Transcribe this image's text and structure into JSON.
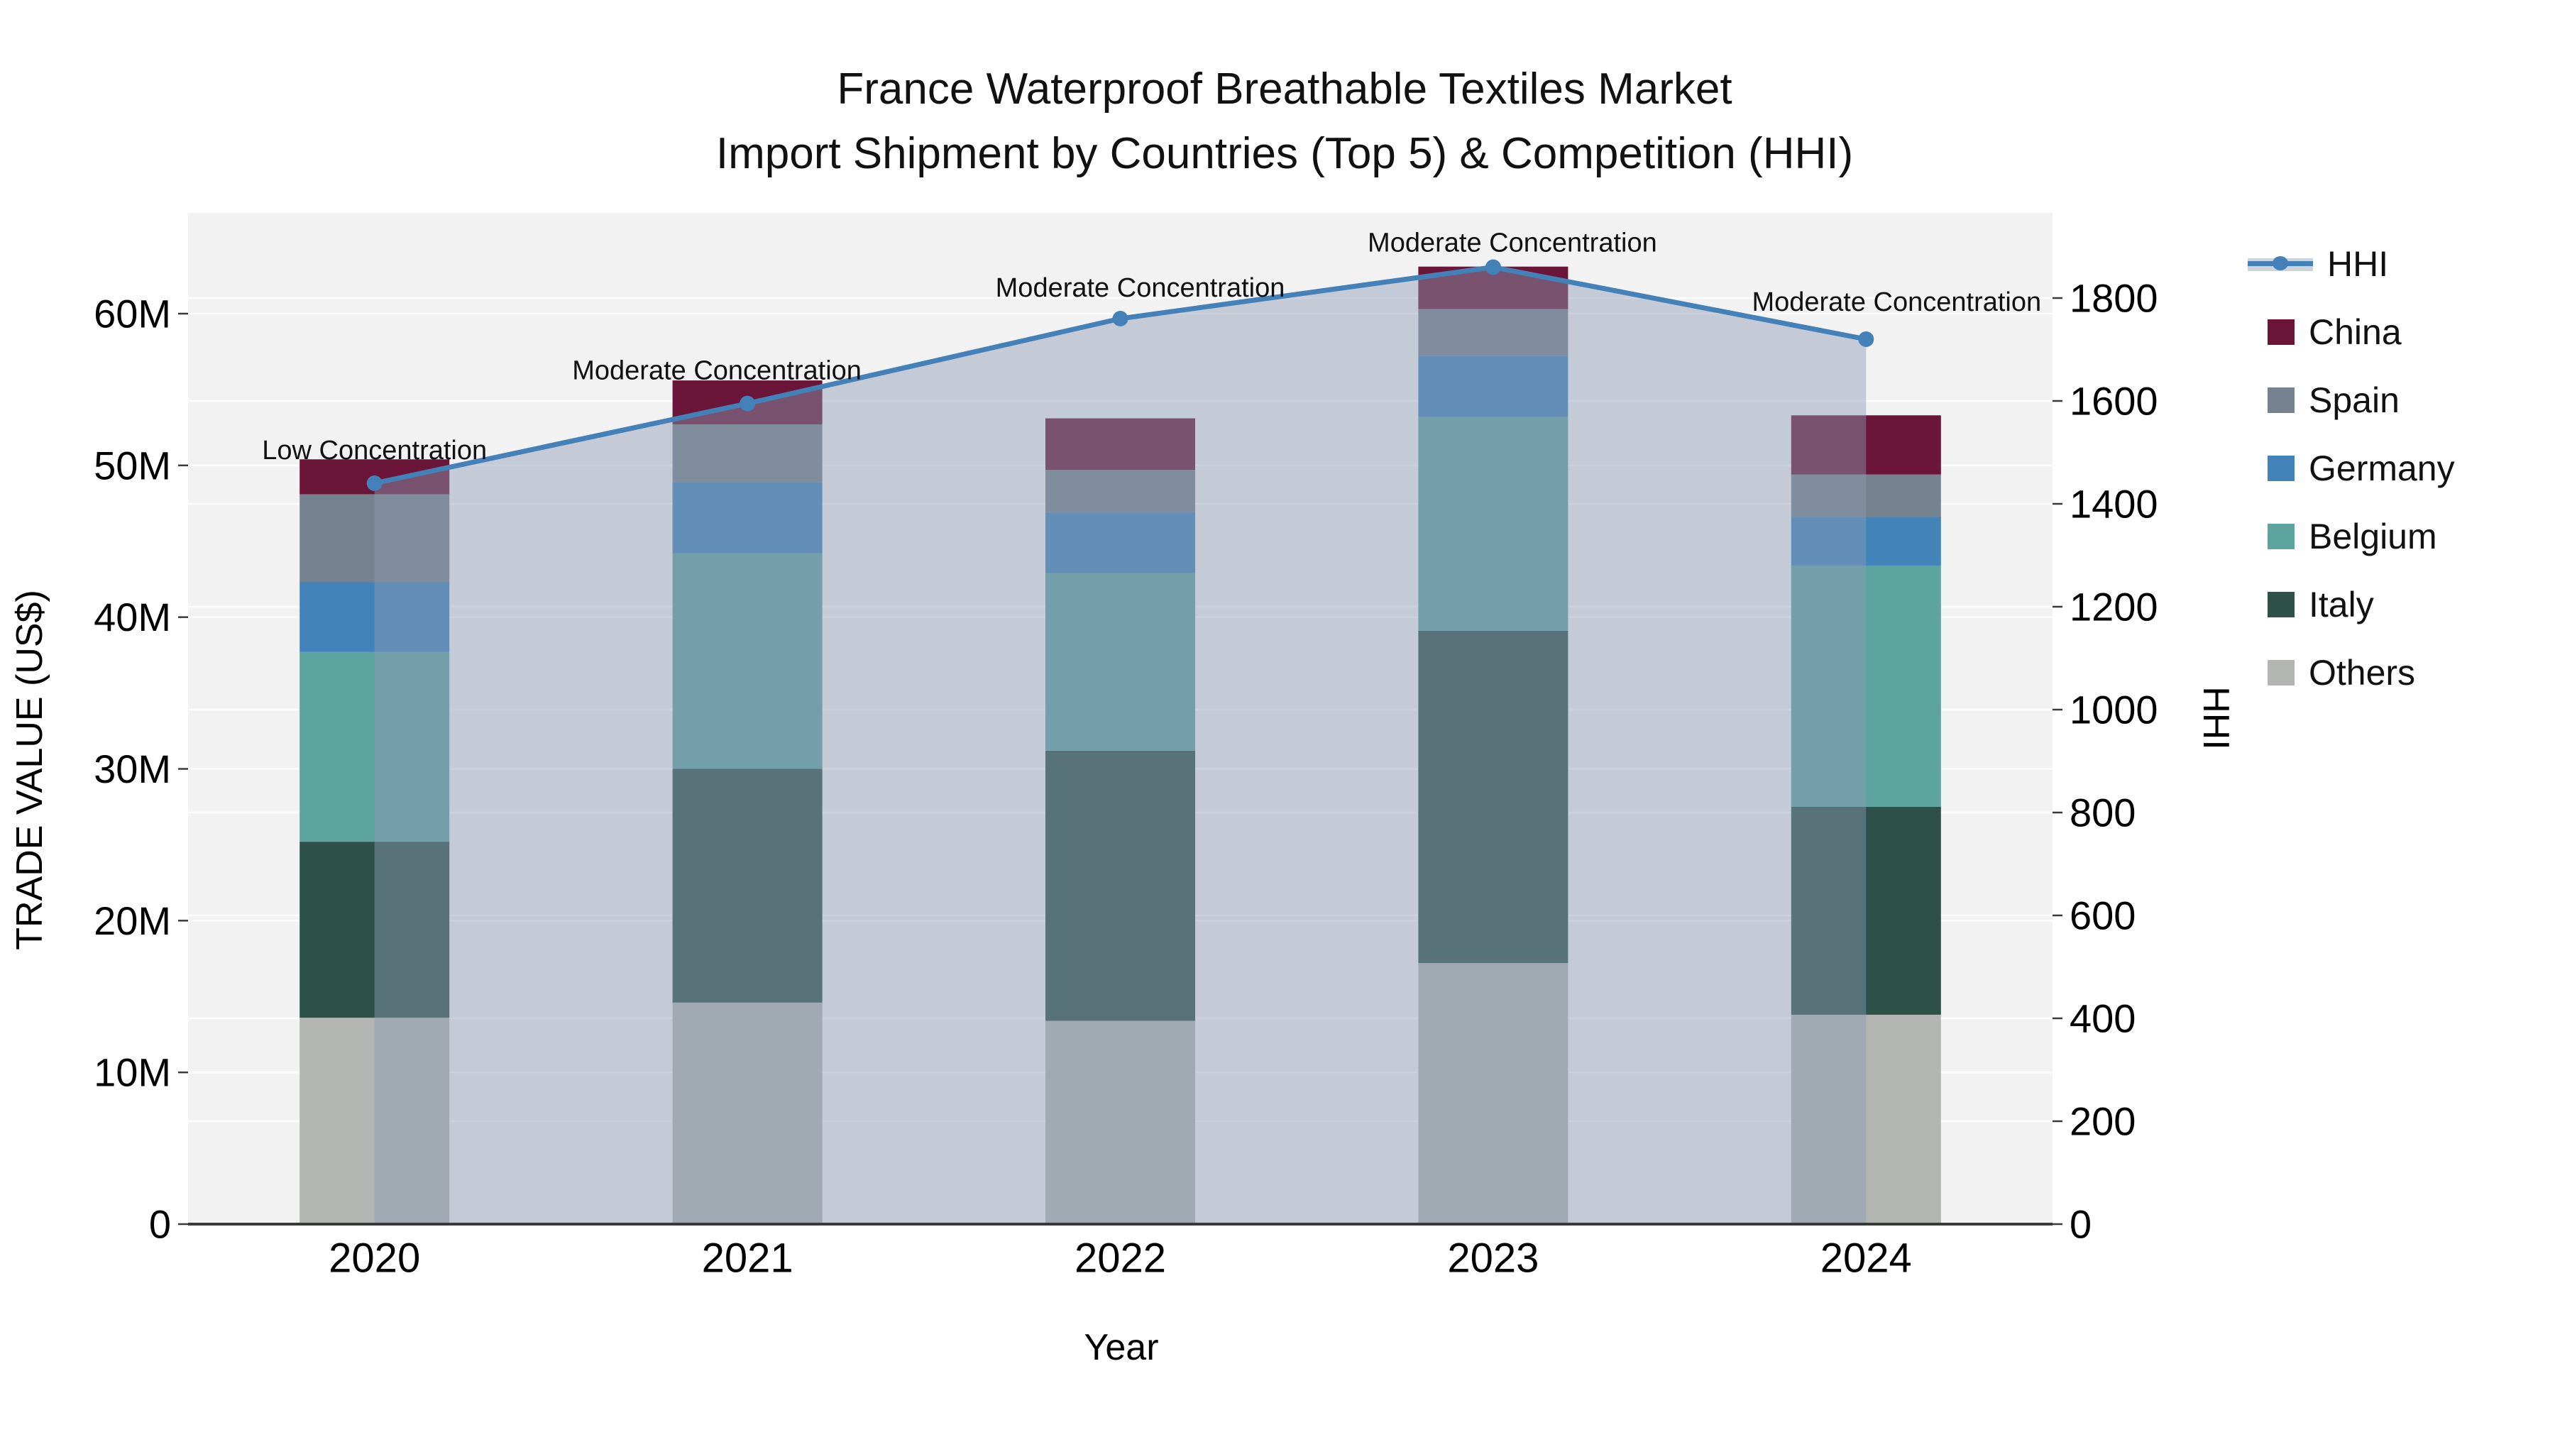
{
  "title": {
    "line1": "France Waterproof Breathable Textiles Market",
    "line2": "Import Shipment by Countries (Top 5) & Competition (HHI)"
  },
  "axes": {
    "left_title": "TRADE VALUE (US$)",
    "right_title": "HHI",
    "x_title": "Year",
    "left_ticks": [
      "0",
      "10M",
      "20M",
      "30M",
      "40M",
      "50M",
      "60M"
    ],
    "right_ticks": [
      "0",
      "200",
      "400",
      "600",
      "800",
      "1000",
      "1200",
      "1400",
      "1600",
      "1800"
    ],
    "x_ticks": [
      "2020",
      "2021",
      "2022",
      "2023",
      "2024"
    ]
  },
  "legend": {
    "items": [
      {
        "label": "HHI",
        "type": "line",
        "color": "#4381b8"
      },
      {
        "label": "China",
        "type": "patch",
        "color": "#6b1638"
      },
      {
        "label": "Spain",
        "type": "patch",
        "color": "#75828f"
      },
      {
        "label": "Germany",
        "type": "patch",
        "color": "#4284ba"
      },
      {
        "label": "Belgium",
        "type": "patch",
        "color": "#5da3a0"
      },
      {
        "label": "Italy",
        "type": "patch",
        "color": "#2d5048"
      },
      {
        "label": "Others",
        "type": "patch",
        "color": "#b2b5b2"
      }
    ]
  },
  "chart_data": {
    "type": "bar+line",
    "title": "France Waterproof Breathable Textiles Market - Import Shipment by Countries (Top 5) & Competition (HHI)",
    "categories": [
      "2020",
      "2021",
      "2022",
      "2023",
      "2024"
    ],
    "bar_unit": "trade value, millions US$",
    "stack_order": [
      "Others",
      "Italy",
      "Belgium",
      "Germany",
      "Spain",
      "China"
    ],
    "series": [
      {
        "name": "Others",
        "color": "#b2b5b2",
        "values": [
          13.6,
          14.6,
          13.4,
          17.2,
          13.8
        ]
      },
      {
        "name": "Italy",
        "color": "#2d5048",
        "values": [
          11.6,
          15.4,
          17.8,
          21.9,
          13.7
        ]
      },
      {
        "name": "Belgium",
        "color": "#5da3a0",
        "values": [
          12.5,
          14.2,
          11.7,
          14.1,
          15.9
        ]
      },
      {
        "name": "Germany",
        "color": "#4284ba",
        "values": [
          4.6,
          4.7,
          4.0,
          4.0,
          3.2
        ]
      },
      {
        "name": "Spain",
        "color": "#75828f",
        "values": [
          5.8,
          3.8,
          2.8,
          3.1,
          2.8
        ]
      },
      {
        "name": "China",
        "color": "#6b1638",
        "values": [
          2.3,
          2.9,
          3.4,
          2.8,
          3.9
        ]
      }
    ],
    "stack_totals_m": [
      50.4,
      55.6,
      53.1,
      63.1,
      53.3
    ],
    "line_series": {
      "name": "HHI",
      "color": "#4381b8",
      "values": [
        1440,
        1595,
        1760,
        1860,
        1720
      ],
      "annotations": [
        "Low Concentration",
        "Moderate Concentration",
        "Moderate Concentration",
        "Moderate Concentration",
        "Moderate Concentration"
      ],
      "area_fill_under_line": true,
      "area_color": "rgba(140,155,180,0.45)"
    },
    "left_axis": {
      "label": "TRADE VALUE (US$)",
      "tick_step": "10M",
      "ticks_max": "60M"
    },
    "right_axis": {
      "label": "HHI",
      "tick_step": 200,
      "ticks_max": 1800
    },
    "plot_background": "#f2f2f2",
    "gridlines": "both axes, light",
    "legend_position": "right"
  }
}
